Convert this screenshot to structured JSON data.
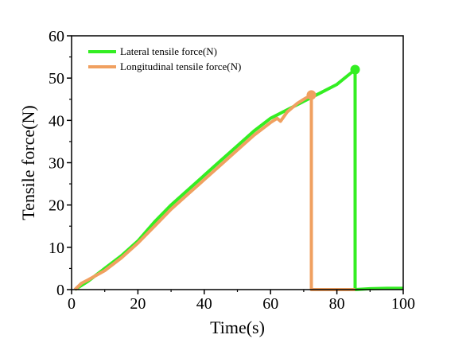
{
  "chart_data": {
    "type": "line",
    "title": "",
    "xlabel": "Time(s)",
    "ylabel": "Tensile force(N)",
    "xlim": [
      0,
      100
    ],
    "ylim": [
      0,
      60
    ],
    "xticks": [
      0,
      20,
      40,
      60,
      80,
      100
    ],
    "yticks": [
      0,
      10,
      20,
      30,
      40,
      50,
      60
    ],
    "grid": false,
    "legend_position": "top-left",
    "series": [
      {
        "name": "Lateral tensile force(N)",
        "color": "#33ee22",
        "x": [
          1,
          5,
          10,
          15,
          20,
          25,
          30,
          35,
          40,
          45,
          50,
          55,
          60,
          65,
          70,
          75,
          80,
          85.5,
          85.5,
          90,
          95,
          100
        ],
        "y": [
          0,
          2,
          5,
          8,
          11.5,
          16,
          20,
          23.5,
          27,
          30.5,
          34,
          37.5,
          40.5,
          42.5,
          44.5,
          46.5,
          48.5,
          52,
          0,
          0.2,
          0.3,
          0.3
        ],
        "peak": {
          "x": 85.5,
          "y": 52
        }
      },
      {
        "name": "Longitudinal tensile force(N)",
        "color": "#f0a060",
        "x": [
          1,
          3,
          5,
          10,
          15,
          20,
          25,
          30,
          35,
          40,
          45,
          50,
          55,
          60,
          62,
          63,
          65,
          68,
          70,
          72.3,
          72.3,
          75,
          80,
          85.5
        ],
        "y": [
          0,
          1.5,
          2.3,
          4.5,
          7.5,
          11,
          15,
          19,
          22.5,
          26,
          29.5,
          33,
          36.5,
          39.5,
          40.5,
          39.8,
          42,
          44,
          45,
          46,
          0,
          0,
          0,
          0
        ],
        "peak": {
          "x": 72.3,
          "y": 46
        }
      }
    ]
  }
}
